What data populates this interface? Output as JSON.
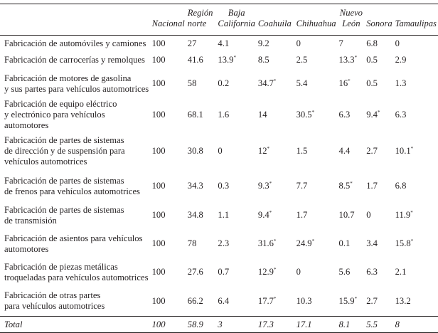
{
  "table": {
    "headers": [
      "Nacional",
      "Región norte",
      "Baja California",
      "Coahuila",
      "Chihuahua",
      "Nuevo León",
      "Sonora",
      "Tamaulipas"
    ],
    "rows": [
      {
        "label": [
          "Fabricación de automóviles y camiones"
        ],
        "values": [
          "100",
          "27",
          "4.1",
          "9.2",
          "0",
          "7",
          "6.8",
          "0"
        ],
        "marks": [
          "",
          "",
          "",
          "",
          "",
          "",
          "",
          ""
        ]
      },
      {
        "label": [
          "Fabricación de carrocerías y remolques"
        ],
        "values": [
          "100",
          "41.6",
          "13.9",
          "8.5",
          "2.5",
          "13.3",
          "0.5",
          "2.9"
        ],
        "marks": [
          "",
          "",
          "*",
          "",
          "",
          "*",
          "",
          ""
        ]
      },
      {
        "label": [
          "Fabricación de motores de gasolina",
          "y sus partes para vehículos automotrices"
        ],
        "values": [
          "100",
          "58",
          "0.2",
          "34.7",
          "5.4",
          "16",
          "0.5",
          "1.3"
        ],
        "marks": [
          "",
          "",
          "",
          "*",
          "",
          "*",
          "",
          ""
        ]
      },
      {
        "label": [
          "Fabricación de equipo eléctrico",
          "y electrónico para vehículos automotores"
        ],
        "values": [
          "100",
          "68.1",
          "1.6",
          "14",
          "30.5",
          "6.3",
          "9.4",
          "6.3"
        ],
        "marks": [
          "",
          "",
          "",
          "",
          "*",
          "",
          "*",
          ""
        ]
      },
      {
        "label": [
          "Fabricación de partes de sistemas",
          "de dirección y de suspensión para",
          "vehículos automotrices"
        ],
        "values": [
          "100",
          "30.8",
          "0",
          "12",
          "1.5",
          "4.4",
          "2.7",
          "10.1"
        ],
        "marks": [
          "",
          "",
          "",
          "*",
          "",
          "",
          "",
          "*"
        ]
      },
      {
        "label": [
          "Fabricación de partes de sistemas",
          "de frenos para vehículos automotrices"
        ],
        "values": [
          "100",
          "34.3",
          "0.3",
          "9.3",
          "7.7",
          "8.5",
          "1.7",
          "6.8"
        ],
        "marks": [
          "",
          "",
          "",
          "*",
          "",
          "*",
          "",
          ""
        ]
      },
      {
        "label": [
          "Fabricación de partes de sistemas",
          "de transmisión"
        ],
        "values": [
          "100",
          "34.8",
          "1.1",
          "9.4",
          "1.7",
          "10.7",
          "0",
          "11.9"
        ],
        "marks": [
          "",
          "",
          "",
          "*",
          "",
          "",
          "",
          "*"
        ]
      },
      {
        "label": [
          "Fabricación de asientos para vehículos",
          "automotores"
        ],
        "values": [
          "100",
          "78",
          "2.3",
          "31.6",
          "24.9",
          "0.1",
          "3.4",
          "15.8"
        ],
        "marks": [
          "",
          "",
          "",
          "*",
          "*",
          "",
          "",
          "*"
        ]
      },
      {
        "label": [
          "Fabricación de piezas metálicas",
          "troqueladas para vehículos automotrices"
        ],
        "values": [
          "100",
          "27.6",
          "0.7",
          "12.9",
          "0",
          "5.6",
          "6.3",
          "2.1"
        ],
        "marks": [
          "",
          "",
          "",
          "*",
          "",
          "",
          "",
          ""
        ]
      },
      {
        "label": [
          "Fabricación de otras partes",
          "para vehículos automotrices"
        ],
        "values": [
          "100",
          "66.2",
          "6.4",
          "17.7",
          "10.3",
          "15.9",
          "2.7",
          "13.2"
        ],
        "marks": [
          "",
          "",
          "",
          "*",
          "",
          "*",
          "",
          ""
        ]
      }
    ],
    "total": {
      "label": "Total",
      "values": [
        "100",
        "58.9",
        "3",
        "17.3",
        "17.1",
        "8.1",
        "5.5",
        "8"
      ]
    }
  }
}
